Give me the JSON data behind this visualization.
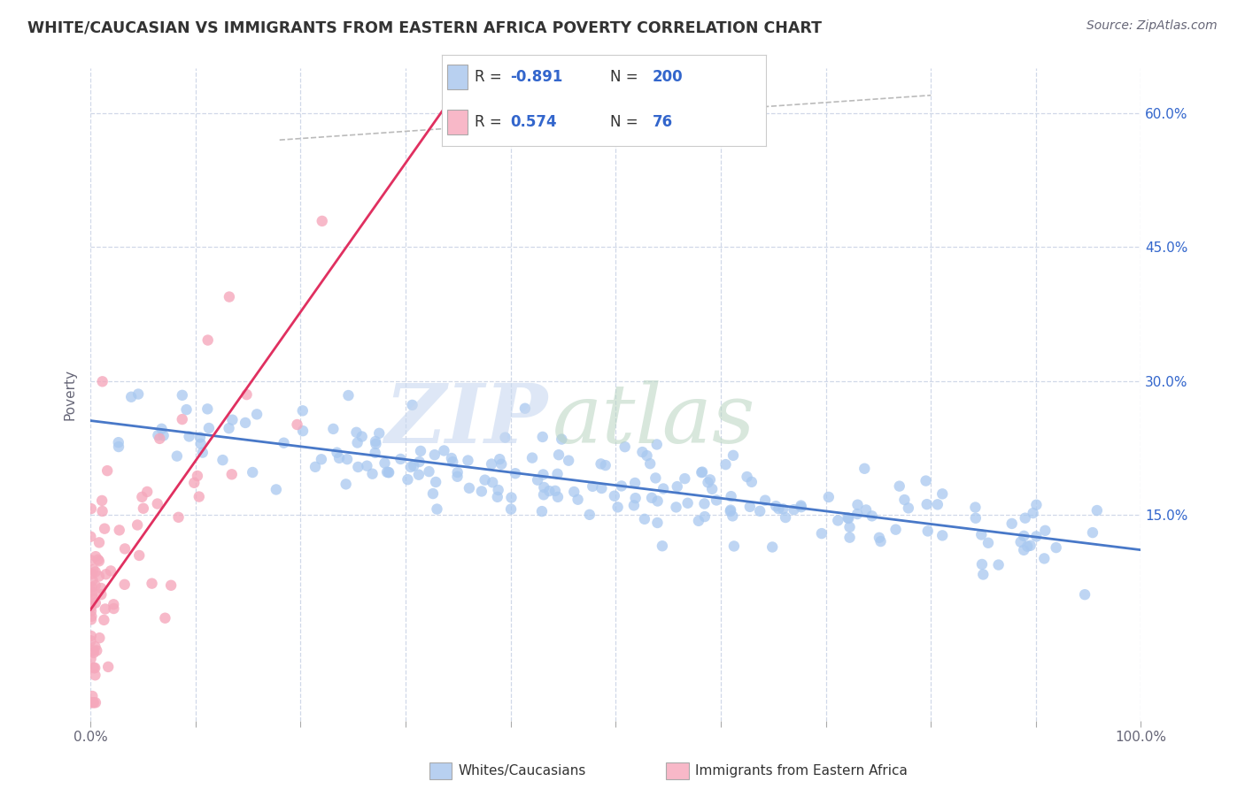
{
  "title": "WHITE/CAUCASIAN VS IMMIGRANTS FROM EASTERN AFRICA POVERTY CORRELATION CHART",
  "source": "Source: ZipAtlas.com",
  "ylabel": "Poverty",
  "blue_R": -0.891,
  "blue_N": 200,
  "pink_R": 0.574,
  "pink_N": 76,
  "blue_dot_color": "#a8c8f0",
  "pink_dot_color": "#f5a8bc",
  "blue_line_color": "#4878c8",
  "pink_line_color": "#e03060",
  "blue_legend_color": "#b8d0f0",
  "pink_legend_color": "#f8b8c8",
  "watermark_zip_color": "#c8d8f0",
  "watermark_atlas_color": "#b8d4c0",
  "xlim": [
    0.0,
    1.0
  ],
  "ylim": [
    -0.08,
    0.65
  ],
  "yticks": [
    0.15,
    0.3,
    0.45,
    0.6
  ],
  "ytick_labels": [
    "15.0%",
    "30.0%",
    "45.0%",
    "60.0%"
  ],
  "xtick_positions": [
    0.0,
    0.1,
    0.2,
    0.3,
    0.4,
    0.5,
    0.6,
    0.7,
    0.8,
    0.9,
    1.0
  ],
  "background_color": "#ffffff",
  "grid_color": "#d0d8e8",
  "title_color": "#333333",
  "axis_label_color": "#666677",
  "legend_text_color": "#333333",
  "legend_stat_color": "#3366cc",
  "ref_line_color": "#bbbbbb"
}
